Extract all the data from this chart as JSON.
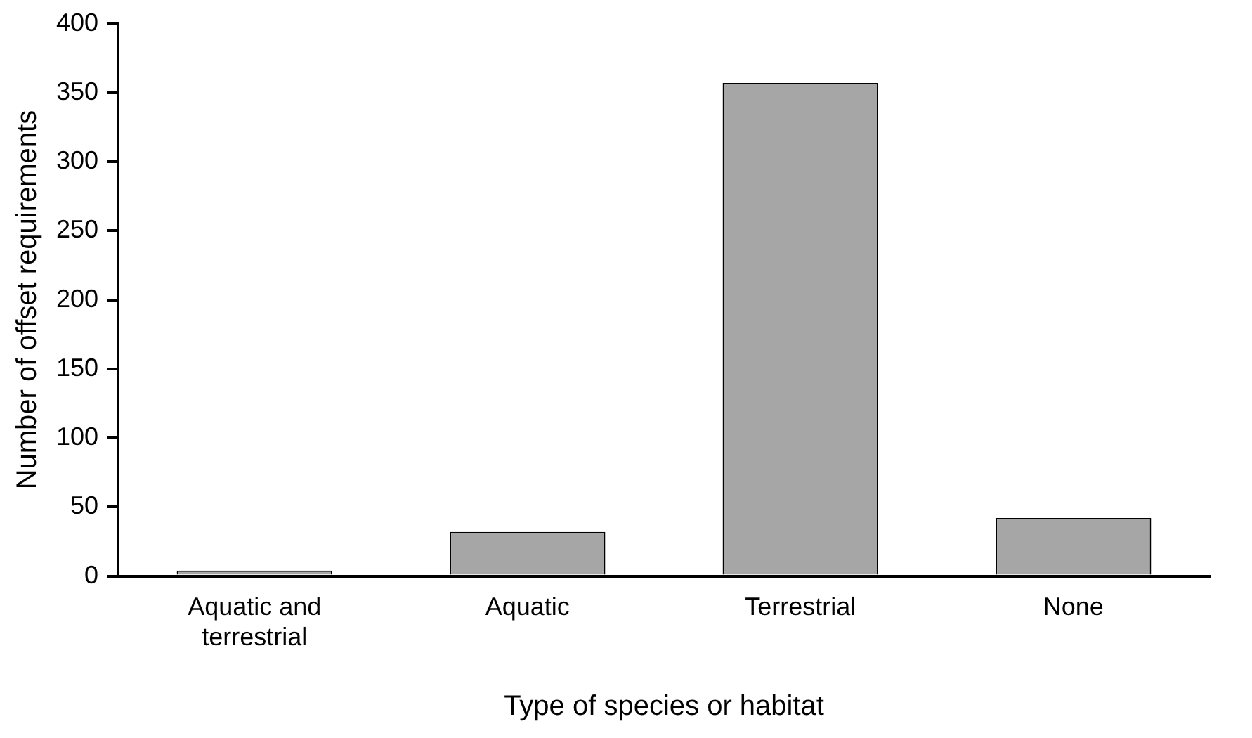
{
  "chart_data": {
    "type": "bar",
    "xlabel": "Type of species or habitat",
    "ylabel": "Number of offset requirements",
    "categories": [
      "Aquatic and terrestrial",
      "Aquatic",
      "Terrestrial",
      "None"
    ],
    "values": [
      4,
      32,
      357,
      42
    ],
    "color": "#a6a6a6",
    "ylim": [
      0,
      400
    ],
    "yticks": [
      0,
      50,
      100,
      150,
      200,
      250,
      300,
      350,
      400
    ],
    "grid": false,
    "legend": false
  }
}
